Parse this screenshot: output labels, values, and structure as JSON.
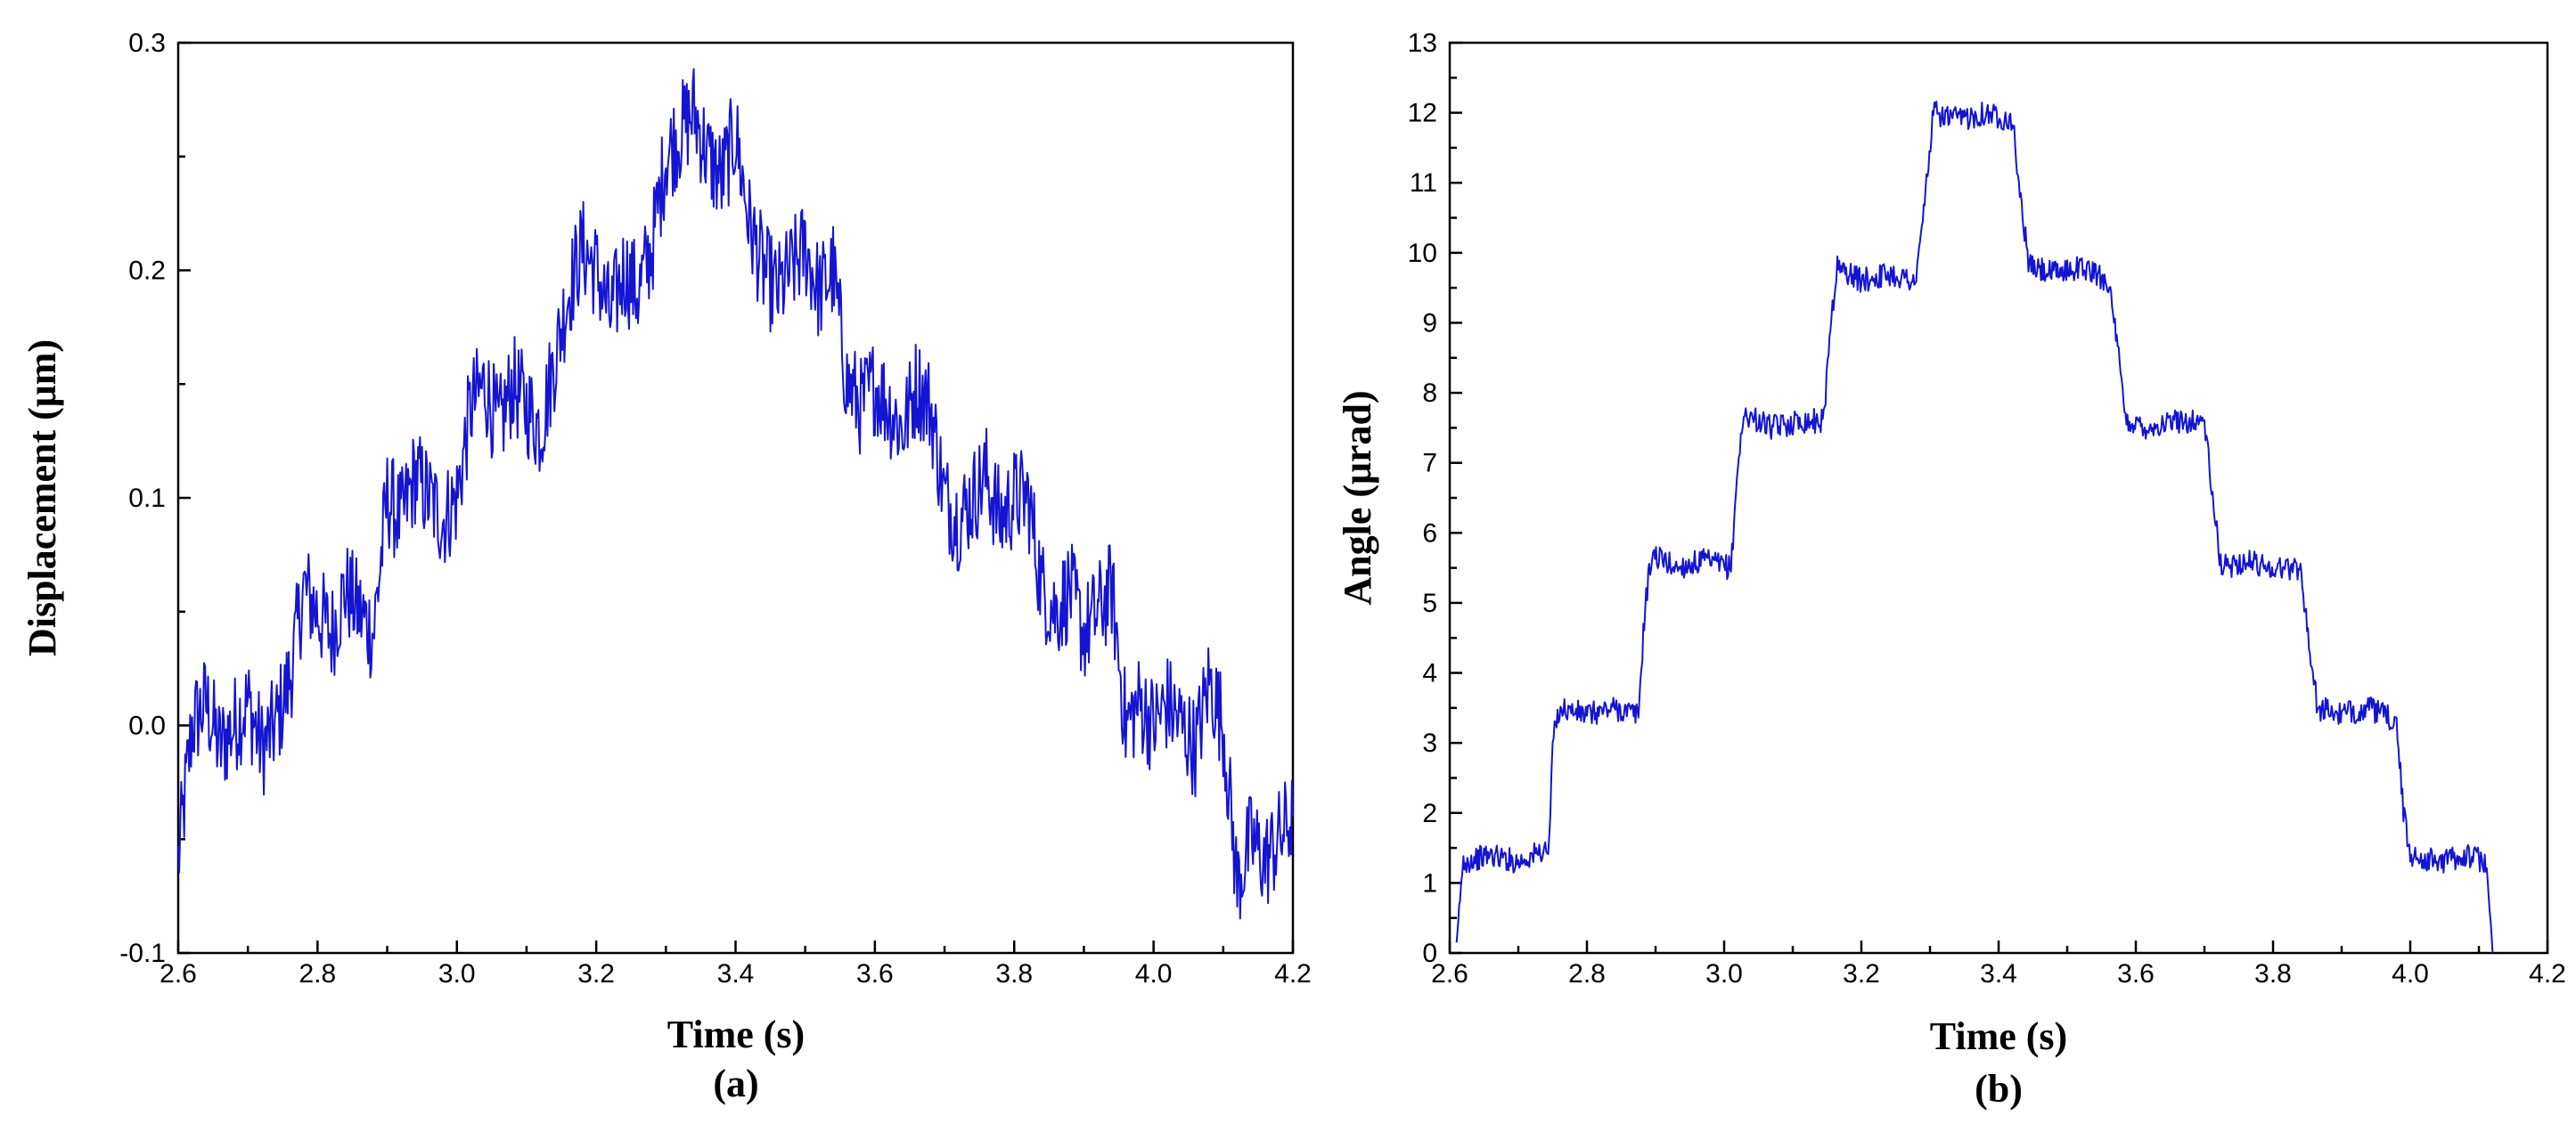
{
  "chart_data": [
    {
      "type": "line",
      "panel_label": "(a)",
      "xlabel": "Time (s)",
      "ylabel": "Displacement (μm)",
      "xlim": [
        2.6,
        4.2
      ],
      "ylim": [
        -0.1,
        0.3
      ],
      "x_ticks": [
        2.6,
        2.8,
        3.0,
        3.2,
        3.4,
        3.6,
        3.8,
        4.0,
        4.2
      ],
      "x_tick_labels": [
        "2.6",
        "2.8",
        "3.0",
        "3.2",
        "3.4",
        "3.6",
        "3.8",
        "4.0",
        "4.2"
      ],
      "y_ticks": [
        -0.1,
        0.0,
        0.1,
        0.2,
        0.3
      ],
      "y_tick_labels": [
        "-0.1",
        "0.0",
        "0.1",
        "0.2",
        "0.3"
      ],
      "grid": false,
      "color": "#1414d2",
      "series": [
        {
          "x": [
            2.6,
            2.61,
            2.62,
            2.64,
            2.66,
            2.68,
            2.7,
            2.72,
            2.74,
            2.76,
            2.78,
            2.8,
            2.82,
            2.84,
            2.86,
            2.88,
            2.9,
            2.92,
            2.94,
            2.96,
            2.98,
            3.0,
            3.02,
            3.04,
            3.06,
            3.08,
            3.1,
            3.12,
            3.14,
            3.16,
            3.18,
            3.2,
            3.22,
            3.24,
            3.26,
            3.28,
            3.3,
            3.32,
            3.34,
            3.36,
            3.38,
            3.4,
            3.42,
            3.44,
            3.46,
            3.48,
            3.5,
            3.52,
            3.54,
            3.56,
            3.58,
            3.6,
            3.62,
            3.64,
            3.66,
            3.68,
            3.7,
            3.72,
            3.74,
            3.76,
            3.78,
            3.8,
            3.82,
            3.84,
            3.86,
            3.88,
            3.9,
            3.92,
            3.94,
            3.96,
            3.98,
            4.0,
            4.02,
            4.04,
            4.06,
            4.08,
            4.1,
            4.12,
            4.14,
            4.16,
            4.18,
            4.2
          ],
          "y": [
            -0.06,
            -0.03,
            0.0,
            0.01,
            -0.01,
            0.0,
            0.01,
            -0.01,
            0.0,
            0.02,
            0.06,
            0.05,
            0.04,
            0.06,
            0.05,
            0.04,
            0.1,
            0.09,
            0.11,
            0.1,
            0.09,
            0.1,
            0.14,
            0.15,
            0.13,
            0.15,
            0.14,
            0.13,
            0.16,
            0.19,
            0.21,
            0.2,
            0.18,
            0.2,
            0.19,
            0.21,
            0.25,
            0.26,
            0.27,
            0.25,
            0.24,
            0.26,
            0.22,
            0.2,
            0.19,
            0.2,
            0.21,
            0.19,
            0.2,
            0.15,
            0.14,
            0.15,
            0.14,
            0.13,
            0.15,
            0.14,
            0.1,
            0.09,
            0.1,
            0.11,
            0.09,
            0.1,
            0.1,
            0.06,
            0.05,
            0.06,
            0.04,
            0.05,
            0.06,
            0.0,
            0.01,
            0.0,
            0.01,
            0.0,
            -0.01,
            0.02,
            0.0,
            -0.07,
            -0.05,
            -0.06,
            -0.05,
            -0.04
          ]
        }
      ]
    },
    {
      "type": "line",
      "panel_label": "(b)",
      "xlabel": "Time (s)",
      "ylabel": "Angle (μrad)",
      "xlim": [
        2.6,
        4.2
      ],
      "ylim": [
        0,
        13
      ],
      "x_ticks": [
        2.6,
        2.8,
        3.0,
        3.2,
        3.4,
        3.6,
        3.8,
        4.0,
        4.2
      ],
      "x_tick_labels": [
        "2.6",
        "2.8",
        "3.0",
        "3.2",
        "3.4",
        "3.6",
        "3.8",
        "4.0",
        "4.2"
      ],
      "y_ticks": [
        0,
        1,
        2,
        3,
        4,
        5,
        6,
        7,
        8,
        9,
        10,
        11,
        12,
        13
      ],
      "y_tick_labels": [
        "0",
        "1",
        "2",
        "3",
        "4",
        "5",
        "6",
        "7",
        "8",
        "9",
        "10",
        "11",
        "12",
        "13"
      ],
      "grid": false,
      "color": "#1414d2",
      "series": [
        {
          "x": [
            2.61,
            2.615,
            2.62,
            2.66,
            2.7,
            2.745,
            2.75,
            2.76,
            2.8,
            2.84,
            2.875,
            2.885,
            2.895,
            2.93,
            2.97,
            3.01,
            3.02,
            3.03,
            3.07,
            3.11,
            3.145,
            3.155,
            3.165,
            3.2,
            3.24,
            3.28,
            3.295,
            3.305,
            3.34,
            3.38,
            3.42,
            3.435,
            3.445,
            3.48,
            3.52,
            3.56,
            3.575,
            3.585,
            3.62,
            3.66,
            3.7,
            3.715,
            3.725,
            3.76,
            3.8,
            3.84,
            3.855,
            3.865,
            3.9,
            3.94,
            3.98,
            3.99,
            4.0,
            4.04,
            4.08,
            4.11,
            4.12
          ],
          "y": [
            0.0,
            0.8,
            1.3,
            1.4,
            1.3,
            1.5,
            3.0,
            3.5,
            3.4,
            3.5,
            3.4,
            5.0,
            5.7,
            5.5,
            5.6,
            5.5,
            7.0,
            7.7,
            7.5,
            7.6,
            7.6,
            9.0,
            9.8,
            9.6,
            9.7,
            9.6,
            11.0,
            12.0,
            11.9,
            12.0,
            11.9,
            10.5,
            9.8,
            9.7,
            9.8,
            9.6,
            8.5,
            7.6,
            7.5,
            7.6,
            7.6,
            6.2,
            5.5,
            5.6,
            5.5,
            5.5,
            4.2,
            3.5,
            3.4,
            3.5,
            3.3,
            2.0,
            1.4,
            1.3,
            1.4,
            1.3,
            0.0
          ]
        }
      ]
    }
  ]
}
